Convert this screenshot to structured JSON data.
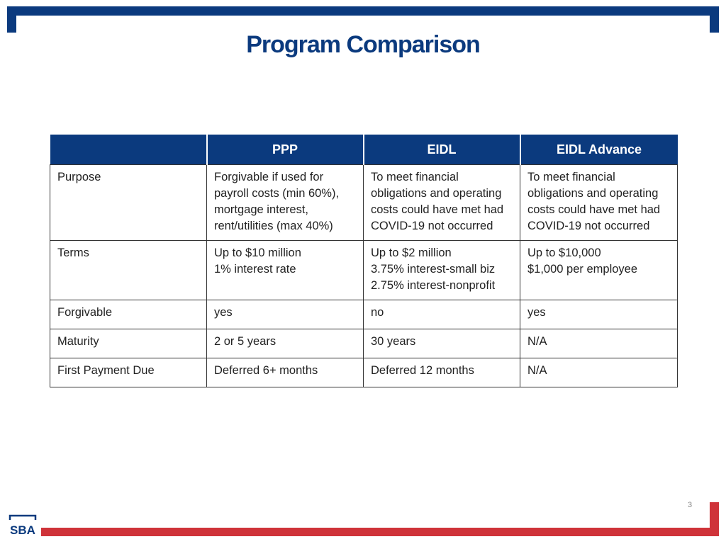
{
  "title": "Program Comparison",
  "table": {
    "headers": [
      "",
      "PPP",
      "EIDL",
      "EIDL Advance"
    ],
    "rows": [
      {
        "label": "Purpose",
        "cells": [
          "Forgivable if used for\npayroll costs (min 60%),\nmortgage interest,\nrent/utilities (max 40%)",
          "To meet financial\nobligations and operating\ncosts could have met had\nCOVID-19 not occurred",
          "To meet financial\nobligations and operating\ncosts could have met had\nCOVID-19 not occurred"
        ]
      },
      {
        "label": "Terms",
        "cells": [
          "Up to $10 million\n1% interest rate",
          "Up to $2 million\n3.75% interest-small biz\n2.75% interest-nonprofit",
          "Up to $10,000\n$1,000 per employee"
        ]
      },
      {
        "label": "Forgivable",
        "cells": [
          "yes",
          "no",
          "yes"
        ]
      },
      {
        "label": "Maturity",
        "cells": [
          "2 or 5 years",
          " 30 years",
          "N/A"
        ]
      },
      {
        "label": "First Payment Due",
        "cells": [
          "Deferred 6+ months",
          "Deferred 12 months",
          "N/A"
        ]
      }
    ]
  },
  "page_number": "3",
  "logo": {
    "text": "SBA"
  },
  "colors": {
    "primary_blue": "#0b3a7e",
    "accent_red": "#cf3339"
  }
}
